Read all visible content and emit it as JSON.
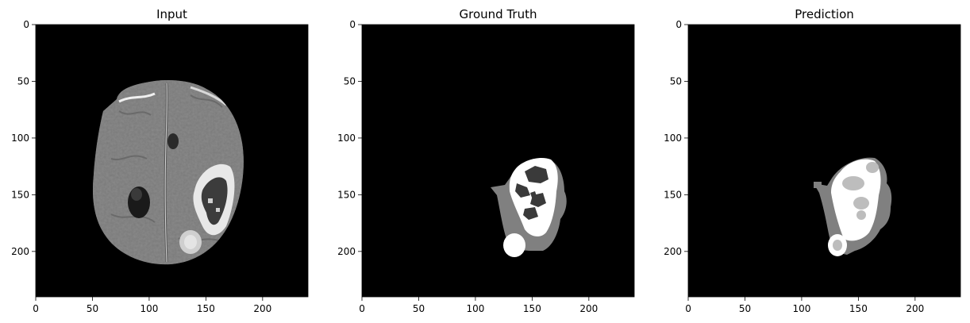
{
  "chart_data": [
    {
      "type": "heatmap",
      "title": "Input",
      "xlim": [
        0,
        240
      ],
      "ylim": [
        240,
        0
      ],
      "x_ticks": [
        0,
        50,
        100,
        150,
        200
      ],
      "y_ticks": [
        0,
        50,
        100,
        150,
        200
      ],
      "colormap": "gray",
      "content": "brain-mri-slice"
    },
    {
      "type": "heatmap",
      "title": "Ground Truth",
      "xlim": [
        0,
        240
      ],
      "ylim": [
        240,
        0
      ],
      "x_ticks": [
        0,
        50,
        100,
        150,
        200
      ],
      "y_ticks": [
        0,
        50,
        100,
        150,
        200
      ],
      "colormap": "gray",
      "content": "segmentation-mask"
    },
    {
      "type": "heatmap",
      "title": "Prediction",
      "xlim": [
        0,
        240
      ],
      "ylim": [
        240,
        0
      ],
      "x_ticks": [
        0,
        50,
        100,
        150,
        200
      ],
      "y_ticks": [
        0,
        50,
        100,
        150,
        200
      ],
      "colormap": "gray",
      "content": "segmentation-mask"
    }
  ]
}
